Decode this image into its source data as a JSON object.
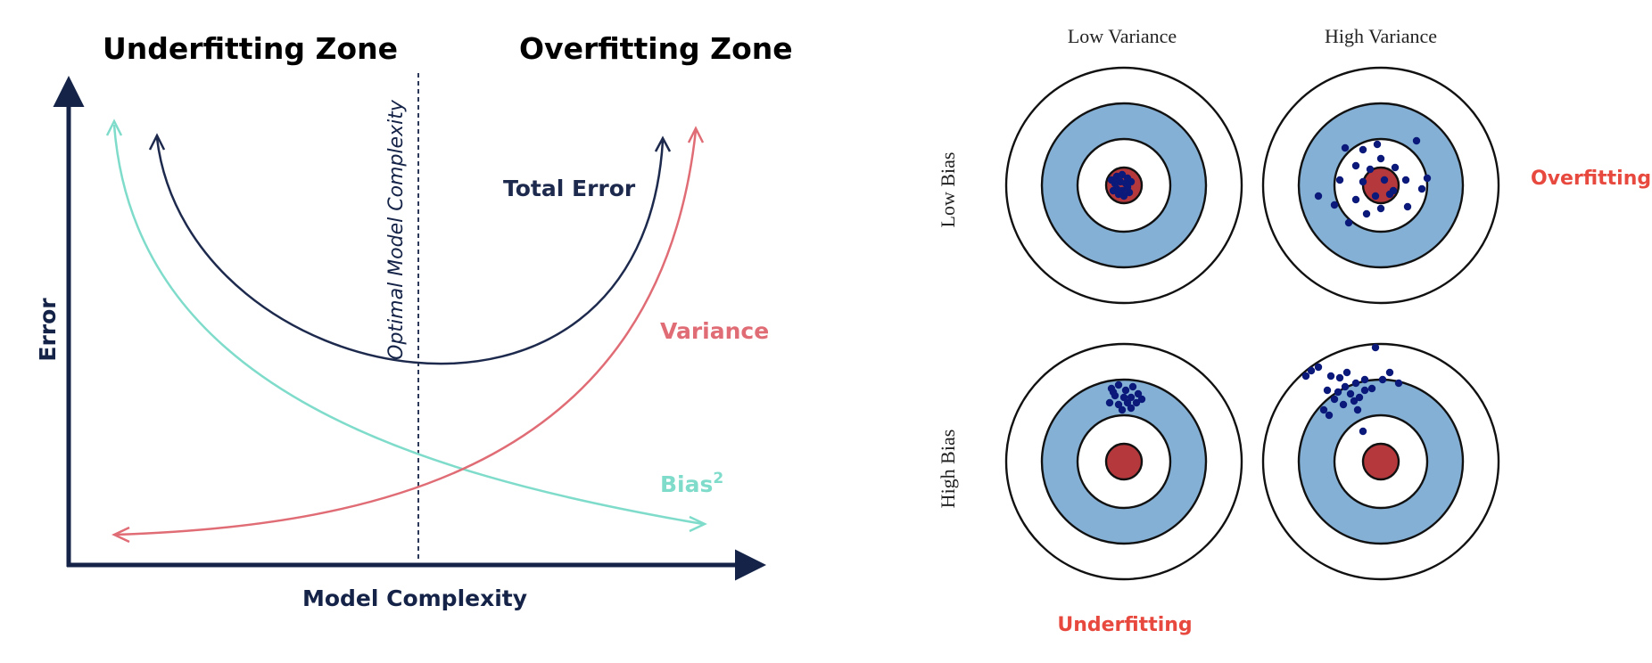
{
  "left_diagram": {
    "underfitting_zone": "Underfitting Zone",
    "overfitting_zone": "Overfitting Zone",
    "y_axis_label": "Error",
    "x_axis_label": "Model Complexity",
    "optimal_line_label": "Optimal Model Complexity",
    "total_error_label": "Total Error",
    "variance_label": "Variance",
    "bias_label": "Bias",
    "bias_superscript": "2",
    "colors": {
      "axis": "#142347",
      "total_error": "#1d2a4d",
      "variance": "#e06c75",
      "bias": "#7fdccb"
    }
  },
  "right_diagram": {
    "col_labels": [
      "Low Variance",
      "High Variance"
    ],
    "row_labels": [
      "Low Bias",
      "High Bias"
    ],
    "overfitting_label": "Overfitting",
    "underfitting_label": "Underfitting",
    "colors": {
      "ring_blue": "#84b0d5",
      "bullseye": "#b5383c",
      "dots": "#0b1a7a",
      "highlight_text": "#e8493f"
    }
  }
}
